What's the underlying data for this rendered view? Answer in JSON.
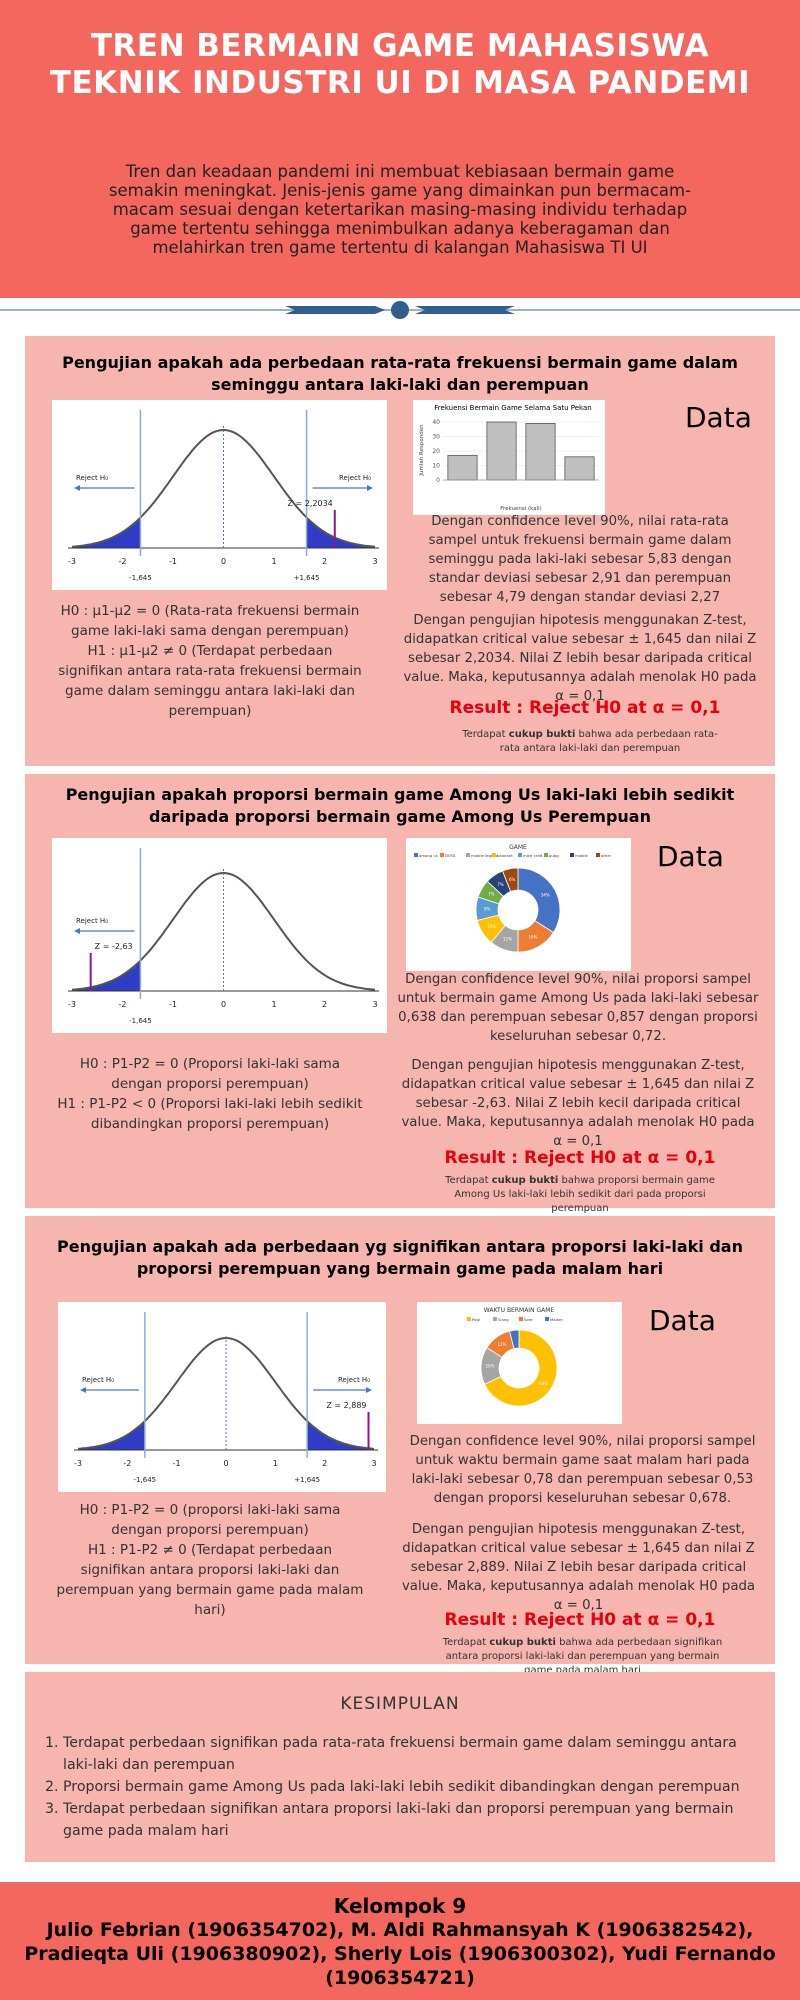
{
  "header": {
    "title": "TREN BERMAIN GAME MAHASISWA TEKNIK INDUSTRI UI DI MASA PANDEMI",
    "intro": "Tren dan keadaan pandemi ini membuat kebiasaan bermain game semakin meningkat. Jenis-jenis game yang dimainkan pun bermacam-macam sesuai dengan ketertarikan masing-masing individu terhadap game tertentu sehingga menimbulkan adanya keberagaman dan melahirkan tren game tertentu di kalangan Mahasiswa TI UI"
  },
  "colors": {
    "accent": "#f4675f",
    "panel": "#f7b5b0",
    "result": "#e8000b",
    "divider": "#2f5f8f"
  },
  "section1": {
    "title": "Pengujian apakah ada perbedaan rata-rata frekuensi bermain game dalam seminggu antara laki-laki dan perempuan",
    "data_label": "Data",
    "curve": {
      "reject_left": "Reject H₀",
      "reject_right": "Reject H₀",
      "z_label": "Z = 2,2034",
      "crit_left": "-1,645",
      "crit_right": "+1,645",
      "ticks": [
        "-3",
        "-2",
        "-1",
        "0",
        "1",
        "2",
        "3"
      ]
    },
    "hypothesis": "H0 : μ1-μ2 = 0 (Rata-rata frekuensi bermain game laki-laki sama dengan perempuan)\nH1 : μ1-μ2 ≠ 0 (Terdapat perbedaan signifikan antara rata-rata frekuensi bermain game dalam seminggu antara laki-laki dan perempuan)",
    "text1": "Dengan confidence level 90%, nilai rata-rata sampel untuk frekuensi bermain game dalam seminggu pada laki-laki sebesar 5,83 dengan standar deviasi sebesar 2,91 dan perempuan sebesar 4,79 dengan standar deviasi 2,27",
    "text2": "Dengan pengujian hipotesis menggunakan Z-test, didapatkan critical value sebesar ± 1,645 dan nilai Z sebesar 2,2034. Nilai Z lebih besar daripada critical value. Maka, keputusannya adalah menolak H0 pada α = 0,1",
    "result": "Result : Reject H0 at α = 0,1",
    "note_pre": "Terdapat ",
    "note_bold": "cukup bukti",
    "note_post": " bahwa ada perbedaan rata-rata antara laki-laki dan perempuan"
  },
  "section2": {
    "title": "Pengujian apakah proporsi bermain game Among Us laki-laki lebih sedikit daripada proporsi bermain game Among Us Perempuan",
    "data_label": "Data",
    "curve": {
      "reject_left": "Reject H₀",
      "z_label": "Z = -2,63",
      "crit_left": "-1,645",
      "ticks": [
        "-3",
        "-2",
        "-1",
        "0",
        "1",
        "2",
        "3"
      ]
    },
    "hypothesis": "H0 : P1-P2 = 0 (Proporsi laki-laki sama dengan proporsi perempuan)\nH1 : P1-P2 < 0 (Proporsi laki-laki lebih sedikit dibandingkan proporsi perempuan)",
    "text1": "Dengan confidence level 90%, nilai proporsi sampel untuk bermain game Among Us pada laki-laki sebesar 0,638 dan perempuan sebesar 0,857 dengan proporsi keseluruhan sebesar 0,72.",
    "text2": "Dengan pengujian hipotesis menggunakan Z-test, didapatkan critical value sebesar ± 1,645 dan nilai Z sebesar -2,63. Nilai Z lebih kecil daripada critical value. Maka, keputusannya adalah menolak H0 pada α = 0,1",
    "result": "Result : Reject H0 at α = 0,1",
    "note_pre": "Terdapat ",
    "note_bold": "cukup bukti",
    "note_post": " bahwa proporsi bermain game Among Us laki-laki lebih sedikit dari pada proporsi perempuan"
  },
  "section3": {
    "title": "Pengujian apakah ada perbedaan yg signifikan antara proporsi laki-laki dan proporsi perempuan yang bermain game pada malam hari",
    "data_label": "Data",
    "curve": {
      "reject_left": "Reject H₀",
      "reject_right": "Reject H₀",
      "z_label": "Z = 2,889",
      "crit_left": "-1,645",
      "crit_right": "+1,645",
      "ticks": [
        "-3",
        "-2",
        "-1",
        "0",
        "1",
        "2",
        "3"
      ]
    },
    "hypothesis": "H0 : P1-P2 = 0 (proporsi laki-laki sama dengan proporsi perempuan)\nH1 : P1-P2 ≠ 0 (Terdapat perbedaan signifikan antara proporsi laki-laki dan perempuan yang bermain game pada malam hari)",
    "text1": "Dengan confidence level 90%, nilai proporsi sampel untuk waktu bermain game saat malam hari pada laki-laki sebesar 0,78 dan perempuan sebesar 0,53 dengan proporsi keseluruhan sebesar 0,678.",
    "text2": "Dengan pengujian hipotesis menggunakan Z-test, didapatkan critical value sebesar ± 1,645 dan nilai Z sebesar 2,889. Nilai Z lebih besar daripada critical value. Maka, keputusannya adalah menolak H0 pada α = 0,1",
    "result": "Result : Reject H0 at α = 0,1",
    "note_pre": "Terdapat ",
    "note_bold": "cukup bukti",
    "note_post": " bahwa ada perbedaan signifikan antara proporsi laki-laki dan perempuan yang bermain game pada malam hari"
  },
  "chart_data": [
    {
      "type": "bar",
      "title": "Frekuensi Bermain Game Selama Satu Pekan",
      "xlabel": "Frekuensi (kali)",
      "ylabel": "Jumlah Responden",
      "yticks": [
        "0",
        "10",
        "20",
        "30",
        "40"
      ],
      "ylim": [
        0,
        40
      ],
      "values": [
        17,
        40,
        39,
        16
      ]
    },
    {
      "type": "pie",
      "title": "GAME",
      "legend": [
        "among us",
        "DOTA",
        "mobile legend",
        "valorant",
        "mine craft",
        "pubg",
        "mobile",
        "other"
      ],
      "values": [
        34,
        16,
        11,
        10,
        9,
        7,
        7,
        6
      ],
      "colors": [
        "#4472c4",
        "#ed7d31",
        "#a5a5a5",
        "#ffc000",
        "#5b9bd5",
        "#70ad47",
        "#264478",
        "#9e480e"
      ]
    },
    {
      "type": "pie",
      "title": "WAKTU BERMAIN GAME",
      "legend": [
        "Pagi",
        "Siang",
        "Sore",
        "Malam"
      ],
      "values": [
        68,
        16,
        12,
        4
      ],
      "colors": [
        "#ffc000",
        "#a5a5a5",
        "#ed7d31",
        "#4472c4"
      ]
    }
  ],
  "kesimpulan": {
    "title": "KESIMPULAN",
    "items": [
      "Terdapat perbedaan signifikan pada rata-rata frekuensi bermain game dalam seminggu antara laki-laki dan perempuan",
      "Proporsi bermain game Among Us pada laki-laki lebih sedikit dibandingkan dengan perempuan",
      "Terdapat perbedaan signifikan antara proporsi laki-laki dan proporsi perempuan yang bermain game pada malam hari"
    ]
  },
  "footer": {
    "group": "Kelompok 9",
    "names": "Julio Febrian (1906354702), M. Aldi Rahmansyah K (1906382542), Pradieqta Uli (1906380902), Sherly Lois (1906300302), Yudi Fernando (1906354721)"
  }
}
